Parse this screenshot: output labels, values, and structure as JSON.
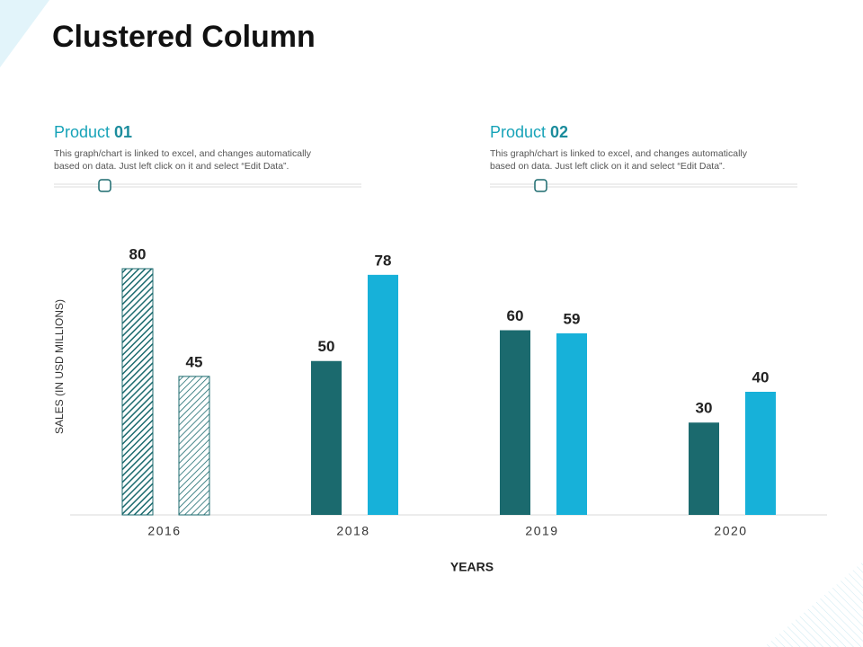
{
  "chart_data": {
    "type": "bar",
    "title": "Clustered Column",
    "categories": [
      "2016",
      "2018",
      "2019",
      "2020"
    ],
    "series": [
      {
        "name": "Product 01",
        "color": "#1b6a6e",
        "values": [
          80,
          50,
          60,
          30
        ],
        "description": [
          "This graph/chart is linked to excel,  and changes automatically",
          "based on data. Just left click on it and select “Edit Data”."
        ]
      },
      {
        "name": "Product 02",
        "color": "#17b1d9",
        "values": [
          45,
          78,
          59,
          40
        ],
        "description": [
          "This graph/chart is linked to excel,  and changes automatically",
          "based on data. Just left click on it and select “Edit Data”."
        ]
      }
    ],
    "hatched_categories": [
      0
    ],
    "x_label": "YEARS",
    "y_label": "SALES (IN USD MILLIONS)"
  }
}
